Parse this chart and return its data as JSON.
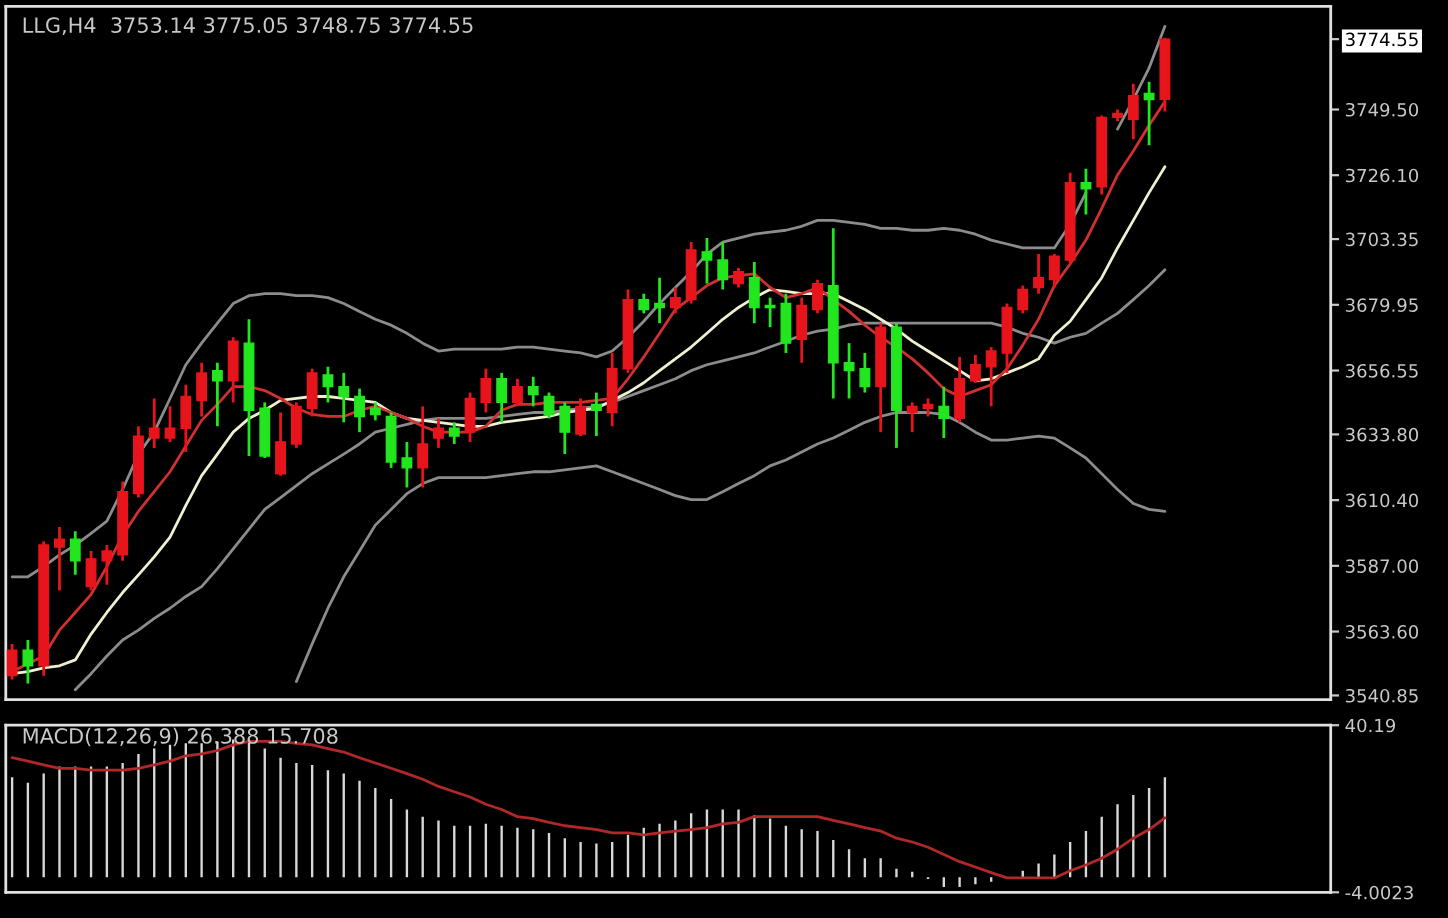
{
  "chart_data": [
    {
      "type": "candlestick",
      "title": "LLG,H4  3753.14 3775.05 3748.75 3774.55",
      "categories": [
        null,
        null,
        null,
        null,
        null,
        null,
        null,
        null,
        null,
        null,
        null,
        null,
        null,
        null,
        null,
        null,
        null,
        null,
        null,
        null,
        null,
        null,
        null,
        null,
        null,
        null,
        null,
        null,
        null,
        null,
        null,
        null,
        null,
        null,
        null,
        null,
        null,
        null,
        null,
        null,
        null,
        null,
        null,
        null,
        null,
        null,
        null,
        null,
        null,
        null,
        null,
        null,
        null,
        null,
        null,
        null,
        null,
        null,
        null,
        null,
        null,
        null,
        null,
        null,
        null,
        null,
        null,
        null,
        null,
        null,
        null,
        null,
        null,
        null
      ],
      "ohlc": [
        [
          3547.9,
          3559.2,
          3546.5,
          3557.0
        ],
        [
          3557.0,
          3560.6,
          3545.1,
          3551.4
        ],
        [
          3551.4,
          3595.8,
          3547.9,
          3594.4
        ],
        [
          3593.7,
          3600.8,
          3578.2,
          3596.5
        ],
        [
          3596.5,
          3599.3,
          3583.8,
          3588.8
        ],
        [
          3579.6,
          3592.3,
          3578.2,
          3589.5
        ],
        [
          3588.8,
          3594.4,
          3580.3,
          3592.3
        ],
        [
          3590.9,
          3617.0,
          3588.8,
          3613.4
        ],
        [
          3612.7,
          3636.7,
          3611.3,
          3633.2
        ],
        [
          3632.5,
          3646.6,
          3629.0,
          3636.0
        ],
        [
          3632.5,
          3643.8,
          3631.1,
          3636.0
        ],
        [
          3636.0,
          3651.5,
          3627.5,
          3647.3
        ],
        [
          3645.9,
          3659.3,
          3640.2,
          3655.7
        ],
        [
          3656.5,
          3659.3,
          3636.7,
          3652.9
        ],
        [
          3652.9,
          3668.4,
          3645.2,
          3667.0
        ],
        [
          3666.3,
          3674.8,
          3626.1,
          3642.4
        ],
        [
          3643.1,
          3645.2,
          3625.4,
          3626.1
        ],
        [
          3619.8,
          3641.6,
          3619.1,
          3631.1
        ],
        [
          3630.4,
          3645.2,
          3629.0,
          3643.8
        ],
        [
          3643.1,
          3657.2,
          3640.2,
          3655.7
        ],
        [
          3655.0,
          3657.9,
          3645.2,
          3650.8
        ],
        [
          3650.8,
          3655.7,
          3638.1,
          3647.3
        ],
        [
          3647.3,
          3650.1,
          3634.6,
          3640.2
        ],
        [
          3643.1,
          3645.2,
          3638.8,
          3640.9
        ],
        [
          3640.2,
          3641.6,
          3621.9,
          3624.0
        ],
        [
          3625.4,
          3631.1,
          3614.9,
          3621.9
        ],
        [
          3621.9,
          3643.8,
          3614.9,
          3630.4
        ],
        [
          3632.5,
          3639.5,
          3629.0,
          3636.0
        ],
        [
          3636.0,
          3638.1,
          3630.4,
          3633.2
        ],
        [
          3634.6,
          3648.7,
          3631.1,
          3646.6
        ],
        [
          3645.2,
          3657.2,
          3641.6,
          3653.6
        ],
        [
          3653.6,
          3655.7,
          3638.1,
          3645.2
        ],
        [
          3645.2,
          3653.6,
          3643.8,
          3650.8
        ],
        [
          3650.8,
          3654.3,
          3643.8,
          3648.0
        ],
        [
          3647.3,
          3648.7,
          3639.5,
          3640.9
        ],
        [
          3643.8,
          3645.2,
          3626.8,
          3634.6
        ],
        [
          3633.9,
          3646.6,
          3633.2,
          3643.8
        ],
        [
          3644.5,
          3648.7,
          3633.2,
          3642.4
        ],
        [
          3641.6,
          3662.8,
          3636.7,
          3657.2
        ],
        [
          3657.2,
          3685.4,
          3655.7,
          3681.8
        ],
        [
          3681.8,
          3683.9,
          3676.9,
          3678.3
        ],
        [
          3680.4,
          3689.6,
          3673.4,
          3679.0
        ],
        [
          3679.0,
          3686.1,
          3676.9,
          3682.5
        ],
        [
          3681.8,
          3702.3,
          3680.4,
          3699.5
        ],
        [
          3698.8,
          3703.7,
          3687.5,
          3695.9
        ],
        [
          3695.9,
          3702.3,
          3685.4,
          3688.9
        ],
        [
          3687.5,
          3693.1,
          3686.1,
          3691.7
        ],
        [
          3689.6,
          3695.2,
          3673.4,
          3679.0
        ],
        [
          3679.7,
          3682.5,
          3672.0,
          3679.0
        ],
        [
          3680.4,
          3683.9,
          3662.8,
          3666.3
        ],
        [
          3667.7,
          3682.5,
          3659.3,
          3679.7
        ],
        [
          3678.3,
          3688.9,
          3676.9,
          3687.5
        ],
        [
          3686.8,
          3707.2,
          3646.6,
          3659.3
        ],
        [
          3659.3,
          3666.3,
          3646.6,
          3656.5
        ],
        [
          3657.2,
          3662.8,
          3648.7,
          3650.8
        ],
        [
          3650.8,
          3673.4,
          3634.6,
          3672.0
        ],
        [
          3672.0,
          3673.4,
          3629.0,
          3642.4
        ],
        [
          3641.6,
          3645.2,
          3634.6,
          3643.8
        ],
        [
          3643.1,
          3646.6,
          3640.2,
          3644.5
        ],
        [
          3643.8,
          3650.8,
          3632.5,
          3639.5
        ],
        [
          3639.5,
          3661.4,
          3638.1,
          3653.6
        ],
        [
          3652.9,
          3662.1,
          3652.2,
          3658.6
        ],
        [
          3657.9,
          3664.9,
          3643.8,
          3663.5
        ],
        [
          3662.8,
          3680.4,
          3655.7,
          3679.0
        ],
        [
          3678.3,
          3686.8,
          3676.9,
          3685.4
        ],
        [
          3686.1,
          3698.0,
          3683.9,
          3689.6
        ],
        [
          3688.9,
          3698.0,
          3686.1,
          3697.3
        ],
        [
          3695.9,
          3727.0,
          3694.5,
          3723.4
        ],
        [
          3723.4,
          3728.4,
          3712.1,
          3721.3
        ],
        [
          3722.0,
          3747.4,
          3719.2,
          3746.7
        ],
        [
          3746.7,
          3749.5,
          3745.3,
          3748.1
        ],
        [
          3746.0,
          3758.7,
          3738.9,
          3754.4
        ],
        [
          3755.2,
          3759.4,
          3736.8,
          3753.0
        ],
        [
          3753.14,
          3775.05,
          3748.75,
          3774.55
        ]
      ],
      "colors": [
        "#e8141c",
        "#22e61e",
        "#e8141c",
        "#e8141c",
        "#22e61e",
        "#e8141c",
        "#e8141c",
        "#e8141c",
        "#e8141c",
        "#e8141c",
        "#e8141c",
        "#e8141c",
        "#e8141c",
        "#22e61e",
        "#e8141c",
        "#22e61e",
        "#22e61e",
        "#e8141c",
        "#e8141c",
        "#e8141c",
        "#22e61e",
        "#22e61e",
        "#22e61e",
        "#22e61e",
        "#22e61e",
        "#22e61e",
        "#e8141c",
        "#e8141c",
        "#22e61e",
        "#e8141c",
        "#e8141c",
        "#22e61e",
        "#e8141c",
        "#22e61e",
        "#22e61e",
        "#22e61e",
        "#e8141c",
        "#22e61e",
        "#e8141c",
        "#e8141c",
        "#22e61e",
        "#22e61e",
        "#e8141c",
        "#e8141c",
        "#22e61e",
        "#22e61e",
        "#e8141c",
        "#22e61e",
        "#22e61e",
        "#22e61e",
        "#e8141c",
        "#e8141c",
        "#22e61e",
        "#22e61e",
        "#22e61e",
        "#e8141c",
        "#22e61e",
        "#e8141c",
        "#e8141c",
        "#22e61e",
        "#e8141c",
        "#e8141c",
        "#e8141c",
        "#e8141c",
        "#e8141c",
        "#e8141c",
        "#e8141c",
        "#e8141c",
        "#22e61e",
        "#e8141c",
        "#e8141c",
        "#e8141c",
        "#22e61e",
        "#e8141c"
      ],
      "series": [
        {
          "type": "line",
          "color": "#8c8c8c",
          "values": [
            3583.1,
            3583.1,
            3586.7,
            3590.9,
            3594.4,
            3598.6,
            3602.9,
            3614.2,
            3626.8,
            3634.6,
            3646.6,
            3658.6,
            3666.3,
            3673.4,
            3680.4,
            3683.2,
            3683.9,
            3683.9,
            3683.2,
            3683.2,
            3682.5,
            3680.4,
            3677.6,
            3674.8,
            3672.7,
            3669.8,
            3666.3,
            3663.5,
            3664.2,
            3664.2,
            3664.2,
            3664.2,
            3664.9,
            3664.9,
            3664.2,
            3663.5,
            3662.8,
            3661.4,
            3663.5,
            3668.4,
            3674.1,
            3680.4,
            3686.1,
            3691.7,
            3698.0,
            3702.3,
            3703.7,
            3705.1,
            3705.8,
            3706.5,
            3707.9,
            3710.0,
            3710.0,
            3709.3,
            3708.6,
            3707.2,
            3707.2,
            3706.5,
            3706.5,
            3707.2,
            3706.5,
            3705.1,
            3703.0,
            3701.6,
            3700.2,
            3700.2,
            3700.2,
            3708.6,
            3719.9,
            null,
            3742.5,
            3753.0,
            3764.3,
            3779.1
          ]
        },
        {
          "type": "line",
          "color": "#8c8c8c",
          "values": [
            null,
            null,
            null,
            null,
            3542.9,
            3548.6,
            3554.9,
            3560.6,
            3564.1,
            3568.3,
            3571.9,
            3576.1,
            3579.6,
            3586.0,
            3593.0,
            3600.1,
            3607.1,
            3611.3,
            3615.6,
            3619.8,
            3623.3,
            3626.8,
            3630.4,
            3634.6,
            3636.0,
            3637.4,
            3638.8,
            3639.5,
            3639.5,
            3639.5,
            3639.5,
            3640.2,
            3640.9,
            3641.6,
            3641.6,
            3642.4,
            3643.1,
            3643.8,
            3645.2,
            3647.3,
            3649.4,
            3651.5,
            3653.6,
            3656.5,
            3658.6,
            3660.0,
            3661.4,
            3662.8,
            3664.9,
            3667.0,
            3669.1,
            3670.6,
            3671.3,
            3672.7,
            3673.4,
            3673.4,
            3673.4,
            3673.4,
            3673.4,
            3673.4,
            3673.4,
            3673.4,
            3673.4,
            3672.0,
            3669.8,
            3668.4,
            3666.3,
            3668.4,
            3669.8,
            3673.4,
            3676.9,
            3681.8,
            3686.8,
            3692.4
          ]
        },
        {
          "type": "line",
          "color": "#8c8c8c",
          "values": [
            null,
            null,
            null,
            null,
            null,
            null,
            null,
            null,
            null,
            null,
            null,
            null,
            null,
            null,
            null,
            null,
            null,
            null,
            3545.8,
            3559.2,
            3571.9,
            3583.1,
            3592.3,
            3601.5,
            3607.1,
            3612.7,
            3616.3,
            3618.4,
            3618.4,
            3618.4,
            3618.4,
            3619.1,
            3619.8,
            3620.5,
            3620.5,
            3621.2,
            3621.9,
            3622.6,
            3620.5,
            3618.4,
            3616.3,
            3614.2,
            3612.0,
            3610.6,
            3610.6,
            3613.4,
            3616.3,
            3619.1,
            3622.6,
            3624.7,
            3627.5,
            3630.4,
            3632.5,
            3635.3,
            3638.1,
            3640.2,
            3641.6,
            3641.6,
            3641.6,
            3640.9,
            3638.1,
            3634.6,
            3631.8,
            3631.8,
            3632.5,
            3633.2,
            3632.5,
            3629.0,
            3625.4,
            3619.8,
            3614.2,
            3609.2,
            3607.1,
            3606.4
          ]
        },
        {
          "type": "line",
          "color": "#f0f0d0",
          "values": [
            3548.6,
            3549.3,
            3550.7,
            3551.4,
            3553.5,
            3562.7,
            3570.4,
            3577.5,
            3583.8,
            3590.2,
            3597.2,
            3608.5,
            3619.1,
            3626.8,
            3634.6,
            3639.5,
            3642.4,
            3645.9,
            3646.6,
            3647.3,
            3647.3,
            3646.6,
            3645.9,
            3645.2,
            3641.6,
            3639.5,
            3638.8,
            3638.1,
            3637.4,
            3636.7,
            3636.7,
            3638.1,
            3638.8,
            3639.5,
            3640.2,
            3641.6,
            3642.4,
            3643.1,
            3645.9,
            3648.7,
            3652.2,
            3656.5,
            3660.7,
            3664.9,
            3669.8,
            3674.8,
            3679.0,
            3682.5,
            3685.4,
            3684.7,
            3683.9,
            3683.9,
            3683.9,
            3681.1,
            3678.3,
            3674.8,
            3671.3,
            3667.0,
            3663.5,
            3660.0,
            3656.5,
            3652.9,
            3653.6,
            3655.7,
            3657.9,
            3660.7,
            3669.1,
            3674.1,
            3681.8,
            3689.6,
            3700.2,
            3710.0,
            3719.9,
            3729.1
          ]
        },
        {
          "type": "line",
          "color": "#d03030",
          "values": [
            3549.3,
            3552.1,
            3554.9,
            3564.1,
            3570.4,
            3576.8,
            3586.7,
            3597.9,
            3606.4,
            3613.4,
            3620.5,
            3629.7,
            3638.8,
            3644.5,
            3650.8,
            3650.8,
            3649.4,
            3646.6,
            3643.1,
            3640.9,
            3640.2,
            3640.2,
            3642.4,
            3643.8,
            3641.6,
            3639.5,
            3636.7,
            3634.6,
            3634.6,
            3634.6,
            3636.7,
            3642.4,
            3644.5,
            3644.5,
            3645.2,
            3645.2,
            3645.2,
            3645.9,
            3646.6,
            3653.6,
            3661.4,
            3669.8,
            3678.3,
            3682.5,
            3686.8,
            3689.6,
            3690.3,
            3691.0,
            3686.1,
            3682.5,
            3683.9,
            3686.1,
            3681.8,
            3677.6,
            3672.7,
            3668.4,
            3664.9,
            3660.7,
            3655.7,
            3650.1,
            3647.3,
            3649.4,
            3651.5,
            3657.2,
            3665.6,
            3674.8,
            3686.8,
            3694.5,
            3703.0,
            3714.3,
            3726.2,
            3734.7,
            3743.9,
            3752.3
          ]
        }
      ],
      "ylim": [
        3539.4,
        3786.2
      ],
      "yticks": [
        3774.55,
        {
          "value": 3749.5,
          "label": "3749.50"
        },
        {
          "value": 3726.1,
          "label": "3726.10"
        },
        3703.35,
        3679.95,
        3656.55,
        {
          "value": 3633.8,
          "label": "3633.80"
        },
        {
          "value": 3610.4,
          "label": "3610.40"
        },
        {
          "value": 3587.0,
          "label": "3587.00"
        },
        {
          "value": 3563.6,
          "label": "3563.60"
        },
        3540.85
      ],
      "tick_labels": "y"
    },
    {
      "type": "bar",
      "title": "MACD(12,26,9) 26.388 15.708",
      "categories": [
        null,
        null,
        null,
        null,
        null,
        null,
        null,
        null,
        null,
        null,
        null,
        null,
        null,
        null,
        null,
        null,
        null,
        null,
        null,
        null,
        null,
        null,
        null,
        null,
        null,
        null,
        null,
        null,
        null,
        null,
        null,
        null,
        null,
        null,
        null,
        null,
        null,
        null,
        null,
        null,
        null,
        null,
        null,
        null,
        null,
        null,
        null,
        null,
        null,
        null,
        null,
        null,
        null,
        null,
        null,
        null,
        null,
        null,
        null,
        null,
        null,
        null,
        null,
        null,
        null,
        null,
        null,
        null,
        null,
        null,
        null,
        null,
        null,
        null
      ],
      "series": [
        {
          "type": "bar",
          "color": "#d8d8d8",
          "values": [
            26.4,
            25.0,
            27.4,
            29.3,
            29.3,
            29.3,
            29.3,
            30.2,
            32.6,
            34.0,
            35.0,
            35.4,
            35.4,
            35.9,
            36.4,
            36.4,
            34.0,
            31.6,
            30.2,
            29.7,
            28.3,
            27.4,
            25.5,
            23.6,
            20.7,
            17.9,
            16.0,
            15.0,
            13.6,
            13.6,
            14.1,
            13.6,
            13.1,
            12.7,
            11.7,
            10.3,
            9.3,
            8.9,
            9.3,
            11.2,
            13.1,
            14.1,
            15.0,
            16.9,
            17.9,
            17.9,
            17.9,
            16.4,
            15.5,
            13.6,
            12.7,
            12.2,
            9.8,
            7.4,
            5.0,
            5.0,
            2.2,
            1.4,
            -0.5,
            -2.6,
            -2.6,
            -1.9,
            -1.2,
            null,
            1.7,
            3.6,
            6.0,
            9.3,
            12.2,
            16.0,
            19.3,
            21.7,
            23.6,
            26.4
          ]
        },
        {
          "type": "line",
          "color": "#b02828",
          "values": [
            31.6,
            30.7,
            29.7,
            28.8,
            28.8,
            28.3,
            28.3,
            28.3,
            28.8,
            29.7,
            30.7,
            32.1,
            32.6,
            33.5,
            35.0,
            35.9,
            35.9,
            35.9,
            35.4,
            35.0,
            34.0,
            33.1,
            31.6,
            30.2,
            28.8,
            27.4,
            25.9,
            24.0,
            22.6,
            21.2,
            19.3,
            17.9,
            16.0,
            15.5,
            14.5,
            13.6,
            13.1,
            12.6,
            11.7,
            11.7,
            11.2,
            11.7,
            12.2,
            12.6,
            13.1,
            14.1,
            14.5,
            16.0,
            16.0,
            16.0,
            16.0,
            16.0,
            15.0,
            14.1,
            13.1,
            12.2,
            10.3,
            9.3,
            7.9,
            6.0,
            4.1,
            2.7,
            1.2,
            -0.2,
            -0.2,
            -0.2,
            -0.2,
            1.7,
            3.2,
            5.0,
            7.4,
            10.3,
            12.6,
            15.7
          ]
        }
      ],
      "ylim": [
        -4.0023,
        40.19
      ],
      "yticks": [
        40.19,
        -4.0023
      ],
      "tick_labels": "y"
    }
  ]
}
